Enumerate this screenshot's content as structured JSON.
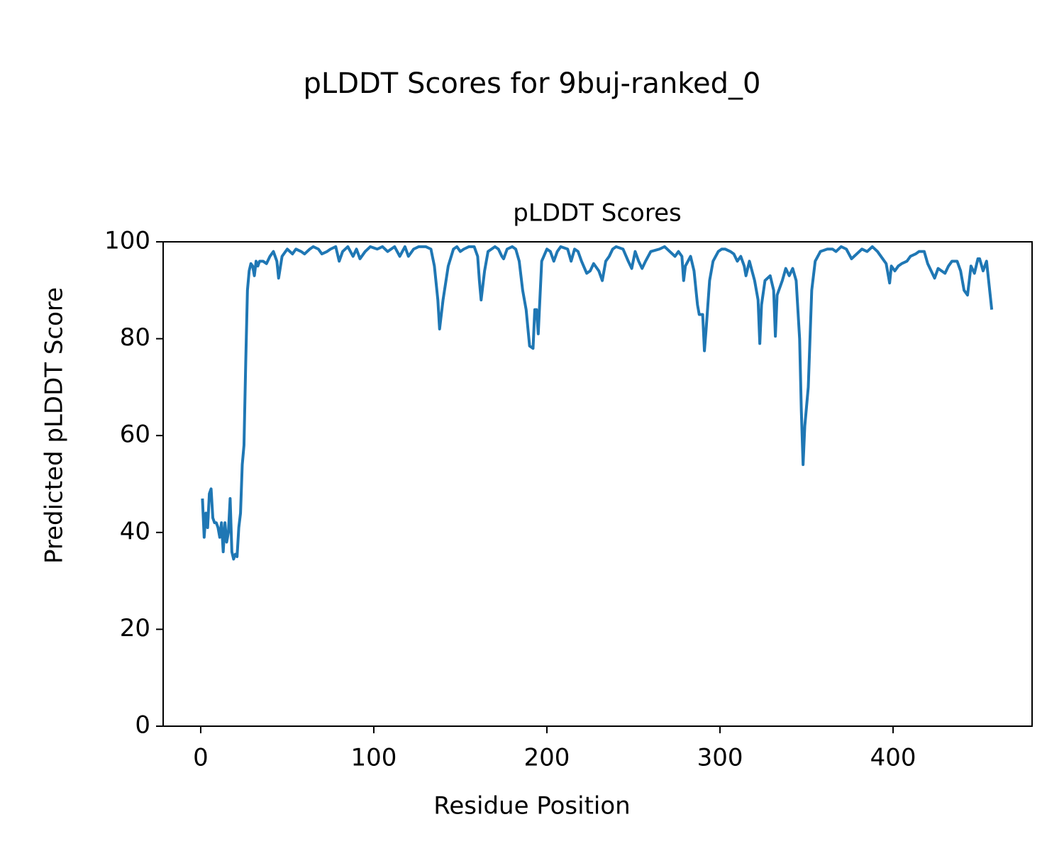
{
  "chart_data": {
    "type": "line",
    "suptitle": "pLDDT Scores for 9buj-ranked_0",
    "title": "pLDDT Scores",
    "xlabel": "Residue Position",
    "ylabel": "Predicted pLDDT Score",
    "xlim": [
      -21.7,
      480.3
    ],
    "ylim": [
      0,
      100
    ],
    "xticks": [
      0,
      100,
      200,
      300,
      400
    ],
    "yticks": [
      0,
      20,
      40,
      60,
      80,
      100
    ],
    "grid": false,
    "x": [
      1,
      2,
      3,
      4,
      5,
      6,
      7,
      8,
      9,
      10,
      11,
      12,
      13,
      14,
      15,
      16,
      17,
      18,
      19,
      20,
      21,
      22,
      23,
      24,
      25,
      26,
      27,
      28,
      29,
      30,
      31,
      32,
      33,
      34,
      36,
      38,
      40,
      42,
      44,
      45,
      47,
      50,
      53,
      55,
      58,
      60,
      63,
      65,
      68,
      70,
      73,
      75,
      78,
      80,
      82,
      85,
      88,
      90,
      92,
      95,
      98,
      102,
      105,
      108,
      112,
      115,
      118,
      120,
      123,
      126,
      130,
      133,
      135,
      137,
      138,
      140,
      143,
      146,
      148,
      150,
      152,
      155,
      158,
      160,
      161,
      162,
      164,
      166,
      170,
      172,
      174,
      175,
      177,
      180,
      182,
      184,
      186,
      188,
      190,
      192,
      193,
      194,
      195,
      197,
      200,
      202,
      204,
      206,
      208,
      212,
      214,
      216,
      218,
      220,
      223,
      225,
      227,
      230,
      232,
      234,
      236,
      238,
      240,
      244,
      247,
      249,
      251,
      253,
      255,
      257,
      260,
      265,
      268,
      271,
      274,
      276,
      278,
      279,
      280,
      283,
      285,
      287,
      288,
      290,
      291,
      292,
      294,
      296,
      299,
      301,
      303,
      306,
      308,
      310,
      312,
      314,
      315,
      317,
      320,
      322,
      323,
      324,
      326,
      329,
      331,
      332,
      333,
      336,
      338,
      340,
      342,
      344,
      346,
      347,
      348,
      349,
      351,
      353,
      355,
      358,
      362,
      365,
      367,
      370,
      373,
      376,
      379,
      382,
      385,
      388,
      391,
      394,
      396,
      398,
      399,
      401,
      403,
      405,
      408,
      410,
      413,
      415,
      418,
      420,
      422,
      424,
      426,
      430,
      432,
      434,
      437,
      439,
      441,
      443,
      445,
      447,
      449,
      450,
      452,
      454,
      457
    ],
    "series": [
      {
        "name": "pLDDT",
        "color": "#1f77b4",
        "values": [
          47,
          39,
          44,
          41,
          48,
          49,
          43,
          42,
          42,
          41,
          39,
          42,
          36,
          42,
          38,
          40,
          47,
          36,
          34.5,
          35.5,
          35,
          41,
          44,
          54,
          58,
          75,
          90,
          94,
          95.5,
          95,
          93,
          96,
          95,
          96,
          96,
          95.5,
          97,
          98,
          96,
          92.5,
          97,
          98.5,
          97.5,
          98.5,
          98,
          97.5,
          98.5,
          99,
          98.5,
          97.5,
          98,
          98.5,
          99,
          96,
          98,
          99,
          97,
          98.5,
          96.5,
          98,
          99,
          98.5,
          99,
          98,
          99,
          97,
          99,
          97,
          98.5,
          99,
          99,
          98.5,
          95,
          88,
          82,
          88,
          95,
          98.5,
          99,
          98,
          98.5,
          99,
          99,
          97,
          92,
          88,
          94,
          98,
          99,
          98.5,
          97,
          96.5,
          98.5,
          99,
          98.5,
          96,
          90,
          86,
          78.5,
          78,
          86,
          86,
          81,
          96,
          98.5,
          98,
          96,
          98,
          99,
          98.5,
          96,
          98.5,
          98,
          96,
          93.5,
          94,
          95.5,
          94,
          92,
          96,
          97,
          98.5,
          99,
          98.5,
          96,
          94.5,
          98,
          96,
          94.5,
          96,
          98,
          98.5,
          99,
          98,
          97,
          98,
          97,
          92,
          95,
          97,
          94,
          87,
          85,
          85,
          77.5,
          82,
          92,
          96,
          98,
          98.5,
          98.5,
          98,
          97.5,
          96,
          97,
          95,
          93,
          96,
          92,
          88,
          79,
          87,
          92,
          93,
          90,
          80.5,
          89,
          92,
          94.5,
          93,
          94.5,
          92,
          80,
          65,
          54,
          62,
          70,
          90,
          96,
          98,
          98.5,
          98.5,
          98,
          99,
          98.5,
          96.5,
          97.5,
          98.5,
          98,
          99,
          98,
          96.5,
          95.5,
          91.5,
          95,
          94,
          95,
          95.5,
          96,
          97,
          97.5,
          98,
          98,
          95.5,
          94,
          92.5,
          94.5,
          93.5,
          95,
          96,
          96,
          94,
          90,
          89,
          95,
          93.5,
          96.5,
          96.5,
          94,
          96,
          86
        ]
      }
    ]
  }
}
